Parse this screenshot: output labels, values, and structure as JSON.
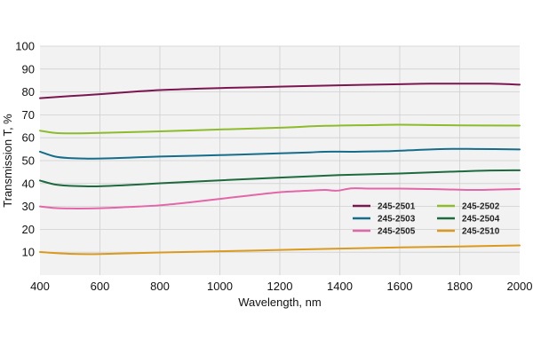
{
  "chart_data": {
    "type": "line",
    "title": "",
    "xlabel": "Wavelength, nm",
    "ylabel": "Transmission T, %",
    "xlim": [
      400,
      2000
    ],
    "ylim": [
      0,
      100
    ],
    "x_ticks": [
      400,
      600,
      800,
      1000,
      1200,
      1400,
      1600,
      1800,
      2000
    ],
    "y_ticks": [
      10,
      20,
      30,
      40,
      50,
      60,
      70,
      80,
      90,
      100
    ],
    "grid": true,
    "legend_position": "right",
    "series": [
      {
        "name": "245-2501",
        "color": "#7a1650",
        "points": [
          [
            400,
            77.3
          ],
          [
            500,
            78.2
          ],
          [
            600,
            79.0
          ],
          [
            700,
            80.0
          ],
          [
            800,
            80.8
          ],
          [
            900,
            81.3
          ],
          [
            1000,
            81.7
          ],
          [
            1200,
            82.3
          ],
          [
            1400,
            82.9
          ],
          [
            1600,
            83.4
          ],
          [
            1700,
            83.6
          ],
          [
            1800,
            83.6
          ],
          [
            1900,
            83.6
          ],
          [
            2000,
            83.2
          ]
        ]
      },
      {
        "name": "245-2502",
        "color": "#8dbb2b",
        "points": [
          [
            400,
            63.1
          ],
          [
            450,
            62.1
          ],
          [
            500,
            61.9
          ],
          [
            600,
            62.1
          ],
          [
            800,
            62.8
          ],
          [
            1000,
            63.6
          ],
          [
            1200,
            64.4
          ],
          [
            1350,
            65.2
          ],
          [
            1500,
            65.5
          ],
          [
            1600,
            65.7
          ],
          [
            1800,
            65.4
          ],
          [
            2000,
            65.3
          ]
        ]
      },
      {
        "name": "245-2503",
        "color": "#156d8a",
        "points": [
          [
            400,
            53.9
          ],
          [
            450,
            51.8
          ],
          [
            500,
            51.1
          ],
          [
            550,
            50.9
          ],
          [
            600,
            50.9
          ],
          [
            700,
            51.3
          ],
          [
            800,
            51.8
          ],
          [
            1000,
            52.4
          ],
          [
            1200,
            53.2
          ],
          [
            1300,
            53.6
          ],
          [
            1350,
            53.9
          ],
          [
            1450,
            53.9
          ],
          [
            1550,
            54.1
          ],
          [
            1650,
            54.6
          ],
          [
            1750,
            55.1
          ],
          [
            1850,
            55.1
          ],
          [
            2000,
            54.9
          ]
        ]
      },
      {
        "name": "245-2504",
        "color": "#1d6a3e",
        "points": [
          [
            400,
            41.3
          ],
          [
            450,
            39.6
          ],
          [
            500,
            39.0
          ],
          [
            550,
            38.8
          ],
          [
            600,
            38.8
          ],
          [
            700,
            39.4
          ],
          [
            800,
            40.1
          ],
          [
            1000,
            41.4
          ],
          [
            1200,
            42.6
          ],
          [
            1400,
            43.7
          ],
          [
            1600,
            44.4
          ],
          [
            1800,
            45.3
          ],
          [
            1900,
            45.7
          ],
          [
            2000,
            45.8
          ]
        ]
      },
      {
        "name": "245-2505",
        "color": "#e366a8",
        "points": [
          [
            400,
            30.0
          ],
          [
            450,
            29.3
          ],
          [
            500,
            29.1
          ],
          [
            600,
            29.2
          ],
          [
            700,
            29.8
          ],
          [
            800,
            30.5
          ],
          [
            900,
            31.8
          ],
          [
            1000,
            33.3
          ],
          [
            1100,
            34.8
          ],
          [
            1200,
            36.2
          ],
          [
            1300,
            36.9
          ],
          [
            1350,
            37.2
          ],
          [
            1380,
            36.9
          ],
          [
            1400,
            37.0
          ],
          [
            1440,
            37.9
          ],
          [
            1500,
            37.8
          ],
          [
            1600,
            37.8
          ],
          [
            1700,
            37.6
          ],
          [
            1800,
            37.3
          ],
          [
            1850,
            37.2
          ],
          [
            1900,
            37.3
          ],
          [
            2000,
            37.6
          ]
        ]
      },
      {
        "name": "245-2510",
        "color": "#d99a1e",
        "points": [
          [
            400,
            10.1
          ],
          [
            500,
            9.3
          ],
          [
            600,
            9.2
          ],
          [
            800,
            9.9
          ],
          [
            1000,
            10.4
          ],
          [
            1200,
            11.0
          ],
          [
            1400,
            11.6
          ],
          [
            1600,
            12.1
          ],
          [
            1800,
            12.5
          ],
          [
            2000,
            13.0
          ]
        ]
      }
    ]
  }
}
